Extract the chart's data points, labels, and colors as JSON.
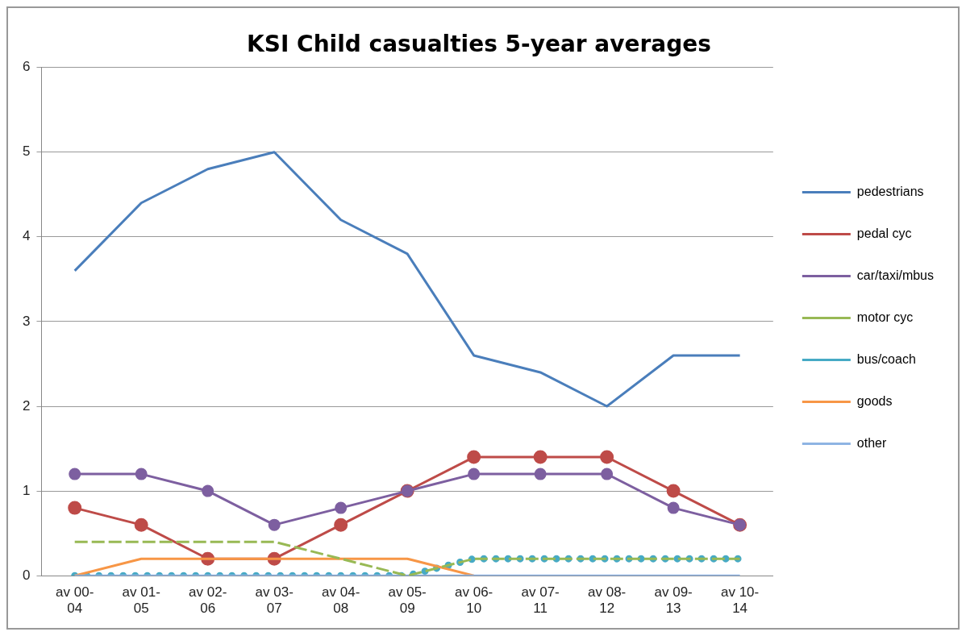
{
  "chart_data": {
    "type": "line",
    "title": "KSI Child casualties 5-year averages",
    "categories": [
      "av 00-04",
      "av 01-05",
      "av 02-06",
      "av 03-07",
      "av 04-08",
      "av 05-09",
      "av 06-10",
      "av 07-11",
      "av 08-12",
      "av 09-13",
      "av 10-14"
    ],
    "series": [
      {
        "name": "pedestrians",
        "color": "#4a7ebb",
        "marker": "none",
        "line_style": "solid",
        "values": [
          3.6,
          4.4,
          4.8,
          5.0,
          4.2,
          3.8,
          2.6,
          2.4,
          2.0,
          2.6,
          2.6
        ]
      },
      {
        "name": "pedal cyc",
        "color": "#be4b48",
        "marker": "circle",
        "line_style": "solid",
        "values": [
          0.8,
          0.6,
          0.2,
          0.2,
          0.6,
          1.0,
          1.4,
          1.4,
          1.4,
          1.0,
          0.6
        ]
      },
      {
        "name": "car/taxi/mbus",
        "color": "#7d5fa0",
        "marker": "circle",
        "line_style": "solid",
        "values": [
          1.2,
          1.2,
          1.0,
          0.6,
          0.8,
          1.0,
          1.2,
          1.2,
          1.2,
          0.8,
          0.6
        ]
      },
      {
        "name": "motor cyc",
        "color": "#98b954",
        "marker": "none",
        "line_style": "dashed",
        "values": [
          0.4,
          0.4,
          0.4,
          0.4,
          0.2,
          0,
          0.2,
          0.2,
          0.2,
          0.2,
          0.2
        ]
      },
      {
        "name": "bus/coach",
        "color": "#46aac5",
        "marker": "none",
        "line_style": "dotted",
        "values": [
          0,
          0,
          0,
          0,
          0,
          0,
          0.2,
          0.2,
          0.2,
          0.2,
          0.2
        ]
      },
      {
        "name": "goods",
        "color": "#f79646",
        "marker": "none",
        "line_style": "solid",
        "values": [
          0,
          0.2,
          0.2,
          0.2,
          0.2,
          0.2,
          0,
          null,
          null,
          null,
          null
        ]
      },
      {
        "name": "other",
        "color": "#8eb4e3",
        "marker": "none",
        "line_style": "solid",
        "values": [
          0,
          0,
          0,
          0,
          0,
          0,
          0,
          0,
          0,
          0,
          0
        ]
      }
    ],
    "ylim": [
      0,
      6
    ],
    "yticks": [
      0,
      1,
      2,
      3,
      4,
      5,
      6
    ],
    "grid": "y",
    "legend": "right"
  }
}
